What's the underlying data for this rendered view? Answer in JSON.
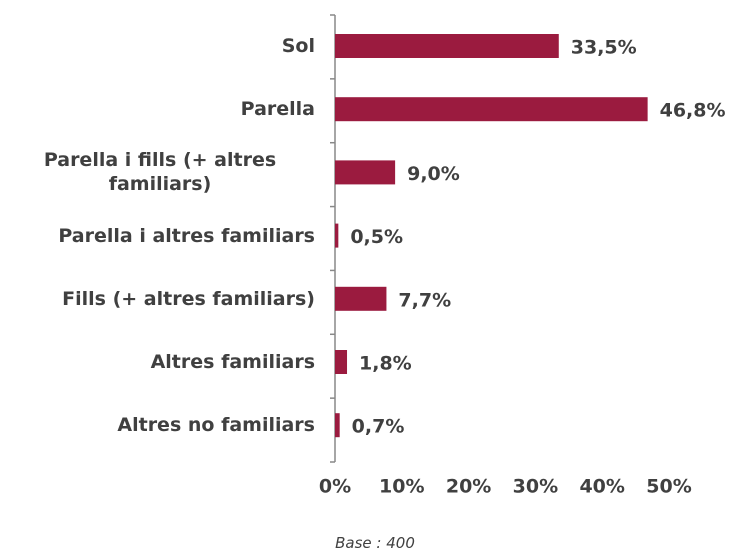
{
  "chart_data": {
    "type": "bar",
    "orientation": "horizontal",
    "categories": [
      "Sol",
      "Parella",
      "Parella i fills (+ altres familiars)",
      "Parella i altres familiars",
      "Fills (+ altres familiars)",
      "Altres familiars",
      "Altres no familiars"
    ],
    "values": [
      33.5,
      46.8,
      9.0,
      0.5,
      7.7,
      1.8,
      0.7
    ],
    "value_labels": [
      "33,5%",
      "46,8%",
      "9,0%",
      "0,5%",
      "7,7%",
      "1,8%",
      "0,7%"
    ],
    "color": "#9b1b3f",
    "xlim": [
      0,
      50
    ],
    "xticks": [
      {
        "value": 0,
        "label": "0%"
      },
      {
        "value": 10,
        "label": "10%"
      },
      {
        "value": 20,
        "label": "20%"
      },
      {
        "value": 30,
        "label": "30%"
      },
      {
        "value": 40,
        "label": "40%"
      },
      {
        "value": 50,
        "label": "50%"
      }
    ],
    "grid": false,
    "annotation": "Base : 400"
  }
}
